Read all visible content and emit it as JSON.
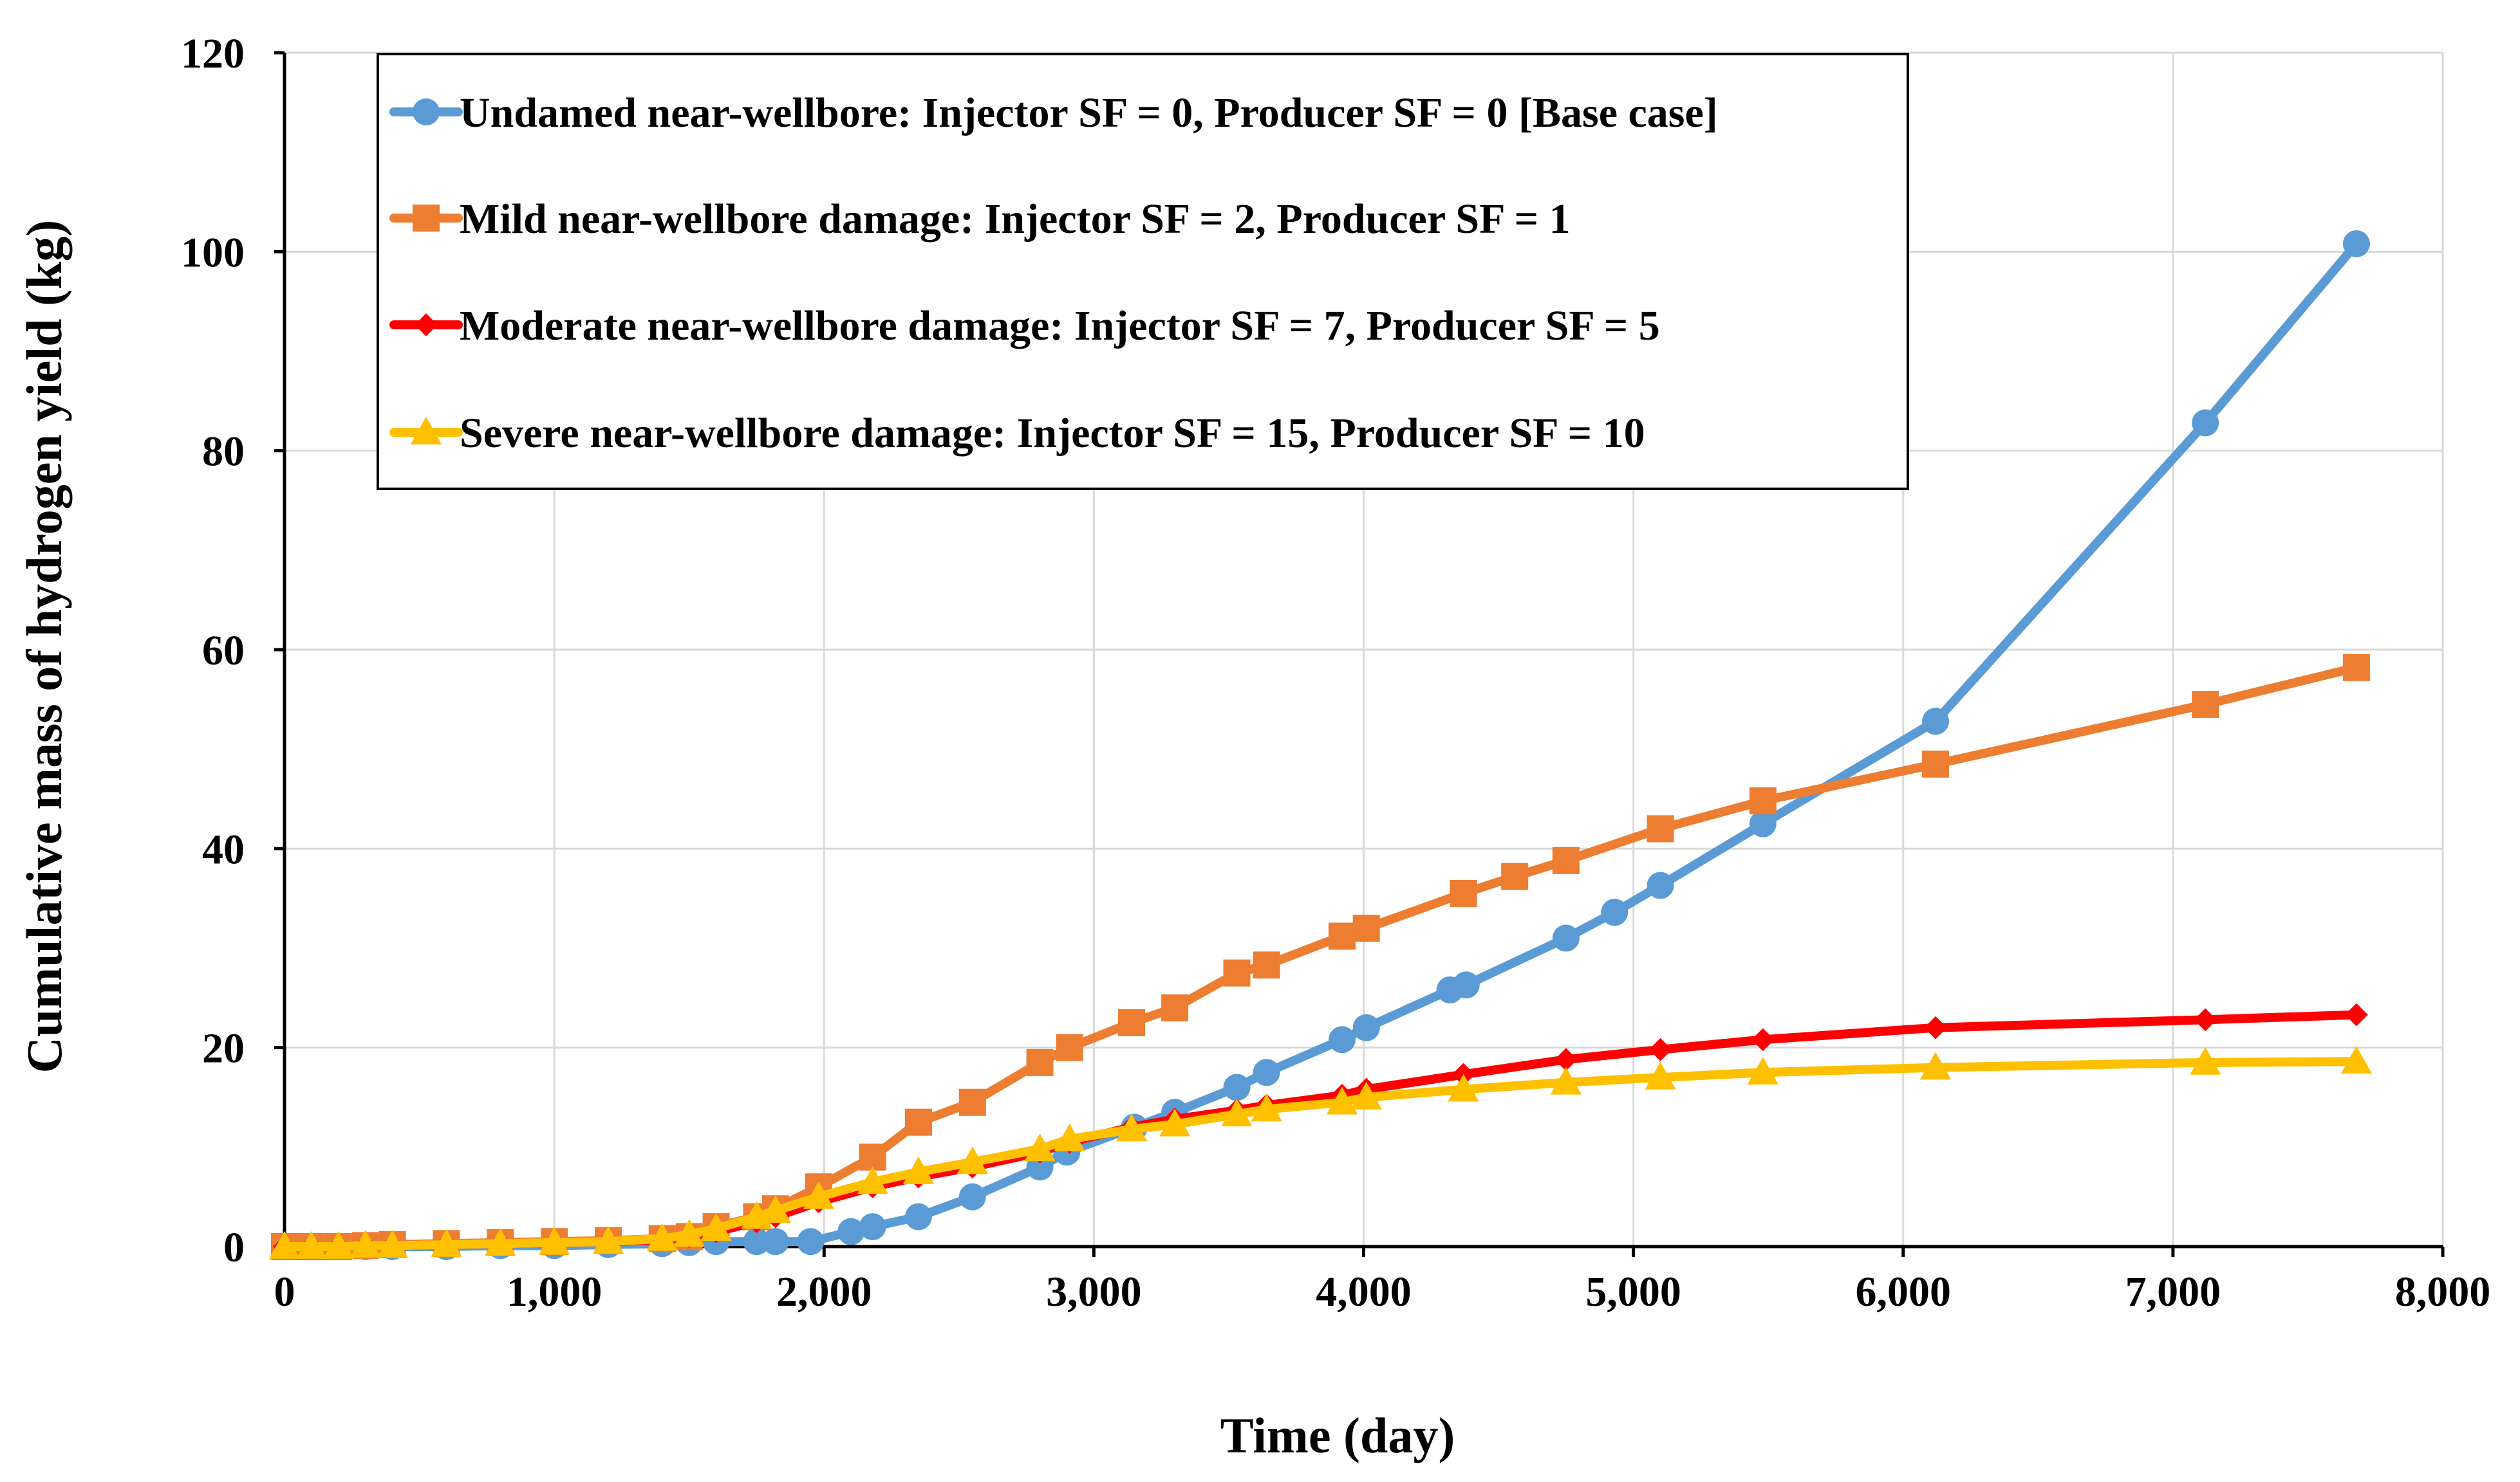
{
  "chart_data": {
    "type": "line",
    "title": "",
    "xlabel": "Time (day)",
    "ylabel": "Cumulative mass of hydrogen yield (kg)",
    "xlim": [
      0,
      8000
    ],
    "ylim": [
      0,
      120
    ],
    "x_ticks": [
      "0",
      "1,000",
      "2,000",
      "3,000",
      "4,000",
      "5,000",
      "6,000",
      "7,000",
      "8,000"
    ],
    "y_ticks": [
      "0",
      "20",
      "40",
      "60",
      "80",
      "100",
      "120"
    ],
    "grid": true,
    "legend_position": "top-left",
    "series": [
      {
        "name": "Undamed near-wellbore: Injector SF = 0, Producer SF = 0 [Base case]",
        "color": "#5B9BD5",
        "marker": "circle",
        "x": [
          0,
          100,
          200,
          300,
          400,
          600,
          800,
          1000,
          1200,
          1400,
          1500,
          1600,
          1750,
          1820,
          1950,
          2100,
          2180,
          2350,
          2550,
          2800,
          2900,
          3150,
          3300,
          3530,
          3640,
          3920,
          4010,
          4320,
          4380,
          4750,
          4930,
          5100,
          5480,
          6120,
          7120,
          7680
        ],
        "y": [
          0,
          0,
          0,
          0,
          0,
          0,
          0.1,
          0.1,
          0.2,
          0.3,
          0.4,
          0.5,
          0.5,
          0.5,
          0.5,
          1.5,
          2,
          3,
          5,
          8,
          9.5,
          12,
          13.5,
          16,
          17.5,
          20.8,
          22,
          25.8,
          26.3,
          31,
          33.6,
          36.3,
          42.5,
          52.8,
          82.8,
          100.8
        ]
      },
      {
        "name": "Mild near-wellbore damage: Injector SF = 2, Producer SF = 1",
        "color": "#ED7D31",
        "marker": "square",
        "x": [
          0,
          100,
          200,
          300,
          400,
          600,
          800,
          1000,
          1200,
          1400,
          1500,
          1600,
          1750,
          1820,
          1980,
          2180,
          2350,
          2550,
          2800,
          2910,
          3140,
          3300,
          3530,
          3640,
          3920,
          4010,
          4370,
          4560,
          4750,
          5100,
          5480,
          6120,
          7120,
          7680
        ],
        "y": [
          0,
          0,
          0,
          0.1,
          0.2,
          0.3,
          0.4,
          0.5,
          0.6,
          0.8,
          1,
          2,
          3,
          3.8,
          6,
          9,
          12.5,
          14.5,
          18.5,
          20,
          22.5,
          24,
          27.5,
          28.3,
          31.2,
          32,
          35.5,
          37.2,
          38.8,
          42,
          44.8,
          48.5,
          54.5,
          58.2
        ]
      },
      {
        "name": "Moderate near-wellbore damage: Injector SF = 7, Producer SF = 5",
        "color": "#FF0000",
        "marker": "diamond",
        "x": [
          0,
          100,
          200,
          300,
          400,
          600,
          800,
          1000,
          1200,
          1400,
          1500,
          1600,
          1750,
          1820,
          1980,
          2180,
          2350,
          2550,
          2800,
          2910,
          3140,
          3300,
          3530,
          3640,
          3920,
          4010,
          4370,
          4750,
          5100,
          5480,
          6120,
          7120,
          7680
        ],
        "y": [
          0,
          0,
          0,
          0.1,
          0.1,
          0.2,
          0.3,
          0.4,
          0.5,
          0.7,
          1,
          1.5,
          2.5,
          3,
          4.5,
          6,
          7,
          8,
          9.5,
          10.5,
          12,
          12.8,
          13.7,
          14.2,
          15.2,
          15.8,
          17.3,
          18.8,
          19.8,
          20.8,
          22,
          22.8,
          23.3
        ]
      },
      {
        "name": "Severe near-wellbore damage: Injector SF = 15, Producer SF = 10",
        "color": "#FFC000",
        "marker": "triangle",
        "x": [
          0,
          100,
          200,
          300,
          400,
          600,
          800,
          1000,
          1200,
          1400,
          1500,
          1600,
          1750,
          1820,
          1980,
          2180,
          2350,
          2550,
          2800,
          2910,
          3140,
          3300,
          3530,
          3640,
          3920,
          4010,
          4370,
          4750,
          5100,
          5480,
          6120,
          7120,
          7680
        ],
        "y": [
          0,
          0,
          0,
          0.1,
          0.1,
          0.2,
          0.3,
          0.4,
          0.5,
          0.8,
          1.2,
          1.8,
          3,
          3.6,
          5,
          6.5,
          7.5,
          8.5,
          9.8,
          10.8,
          11.8,
          12.3,
          13.3,
          13.8,
          14.5,
          15,
          15.8,
          16.5,
          17,
          17.5,
          18,
          18.5,
          18.6
        ]
      }
    ]
  }
}
